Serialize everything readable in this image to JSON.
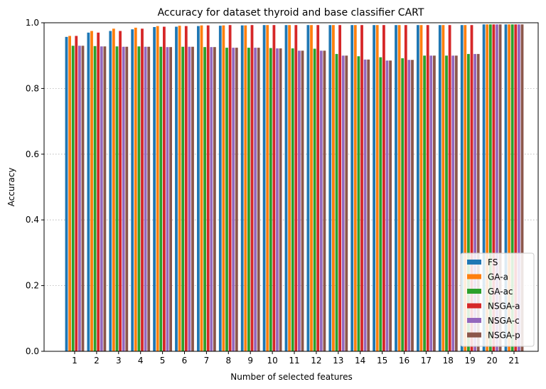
{
  "chart_data": {
    "type": "bar",
    "title": "Accuracy for dataset thyroid and base classifier CART",
    "xlabel": "Number of selected features",
    "ylabel": "Accuracy",
    "ylim": [
      0,
      1.0
    ],
    "yticks": [
      "0.0",
      "0.2",
      "0.4",
      "0.6",
      "0.8",
      "1.0"
    ],
    "grid": "y-dotted",
    "legend_position": "lower-right",
    "categories": [
      "1",
      "2",
      "3",
      "4",
      "5",
      "6",
      "7",
      "8",
      "9",
      "10",
      "11",
      "12",
      "13",
      "14",
      "15",
      "16",
      "17",
      "18",
      "19",
      "20",
      "21"
    ],
    "series": [
      {
        "name": "FS",
        "color": "#1f77b4",
        "values": [
          0.957,
          0.97,
          0.975,
          0.98,
          0.987,
          0.988,
          0.99,
          0.991,
          0.992,
          0.993,
          0.993,
          0.993,
          0.993,
          0.993,
          0.993,
          0.993,
          0.993,
          0.993,
          0.993,
          0.995,
          0.995
        ]
      },
      {
        "name": "GA-a",
        "color": "#ff7f0e",
        "values": [
          0.96,
          0.975,
          0.982,
          0.985,
          0.99,
          0.991,
          0.992,
          0.992,
          0.992,
          0.993,
          0.993,
          0.993,
          0.993,
          0.993,
          0.993,
          0.993,
          0.993,
          0.993,
          0.993,
          0.995,
          0.995
        ]
      },
      {
        "name": "GA-ac",
        "color": "#2ca02c",
        "values": [
          0.93,
          0.929,
          0.928,
          0.928,
          0.927,
          0.927,
          0.926,
          0.924,
          0.924,
          0.923,
          0.922,
          0.921,
          0.905,
          0.898,
          0.895,
          0.892,
          0.9,
          0.9,
          0.905,
          0.995,
          0.995
        ]
      },
      {
        "name": "NSGA-a",
        "color": "#d62728",
        "values": [
          0.96,
          0.97,
          0.975,
          0.982,
          0.988,
          0.99,
          0.992,
          0.993,
          0.993,
          0.993,
          0.993,
          0.993,
          0.993,
          0.993,
          0.993,
          0.993,
          0.993,
          0.993,
          0.993,
          0.995,
          0.995
        ]
      },
      {
        "name": "NSGA-c",
        "color": "#9467bd",
        "values": [
          0.93,
          0.928,
          0.927,
          0.927,
          0.926,
          0.927,
          0.926,
          0.924,
          0.924,
          0.922,
          0.915,
          0.915,
          0.9,
          0.888,
          0.885,
          0.887,
          0.9,
          0.9,
          0.905,
          0.995,
          0.995
        ]
      },
      {
        "name": "NSGA-p",
        "color": "#8c564b",
        "values": [
          0.93,
          0.928,
          0.927,
          0.927,
          0.926,
          0.927,
          0.926,
          0.924,
          0.924,
          0.922,
          0.915,
          0.915,
          0.9,
          0.888,
          0.885,
          0.887,
          0.9,
          0.9,
          0.905,
          0.995,
          0.995
        ]
      }
    ]
  }
}
